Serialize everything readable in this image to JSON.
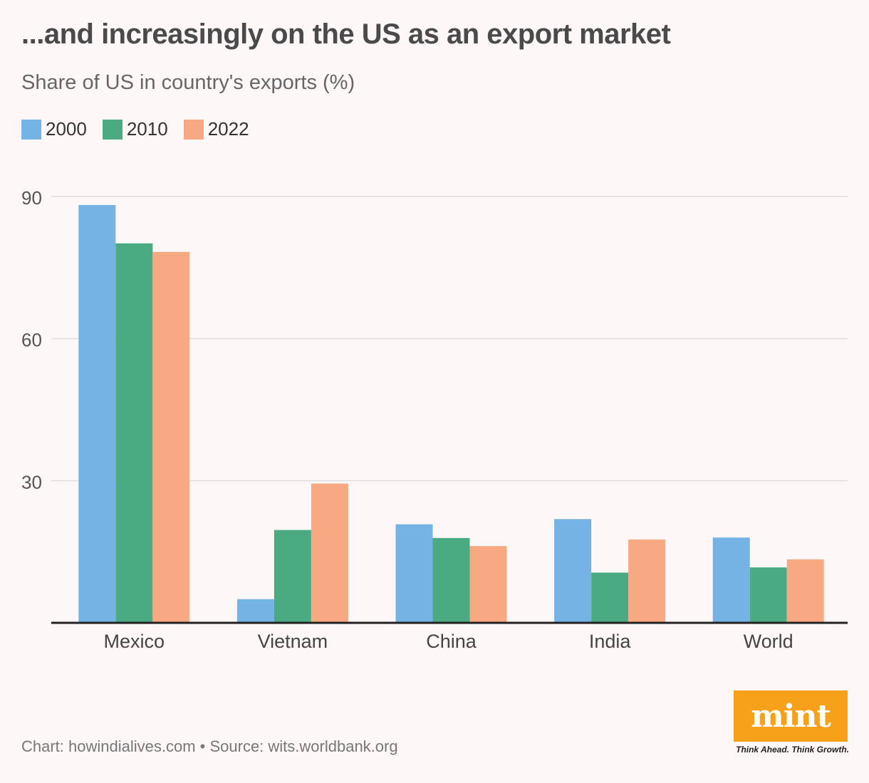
{
  "header": {
    "title": "...and increasingly on the US as an export market",
    "subtitle": "Share of US in country's exports (%)"
  },
  "legend": [
    {
      "label": "2000",
      "color": "#74b3e3"
    },
    {
      "label": "2010",
      "color": "#4aab83"
    },
    {
      "label": "2022",
      "color": "#f7a982"
    }
  ],
  "chart_data": {
    "type": "bar",
    "title": "...and increasingly on the US as an export market",
    "subtitle": "Share of US in country's exports (%)",
    "xlabel": "",
    "ylabel": "Share of US in country's exports (%)",
    "categories": [
      "Mexico",
      "Vietnam",
      "China",
      "India",
      "World"
    ],
    "series": [
      {
        "name": "2000",
        "color": "#74b3e3",
        "values": [
          88.2,
          5.0,
          20.8,
          21.9,
          18.0
        ]
      },
      {
        "name": "2010",
        "color": "#4aab83",
        "values": [
          80.1,
          19.6,
          17.9,
          10.6,
          11.7
        ]
      },
      {
        "name": "2022",
        "color": "#f7a982",
        "values": [
          78.3,
          29.4,
          16.2,
          17.6,
          13.4
        ]
      }
    ],
    "ylim": [
      0,
      90
    ],
    "yticks": [
      30,
      60,
      90
    ],
    "grid": true,
    "legend_position": "top-left"
  },
  "footer": {
    "credit": "Chart: howindialives.com • Source: wits.worldbank.org"
  },
  "logo": {
    "brand": "mint",
    "tagline": "Think Ahead. Think Growth.",
    "color": "#f7a11a"
  }
}
